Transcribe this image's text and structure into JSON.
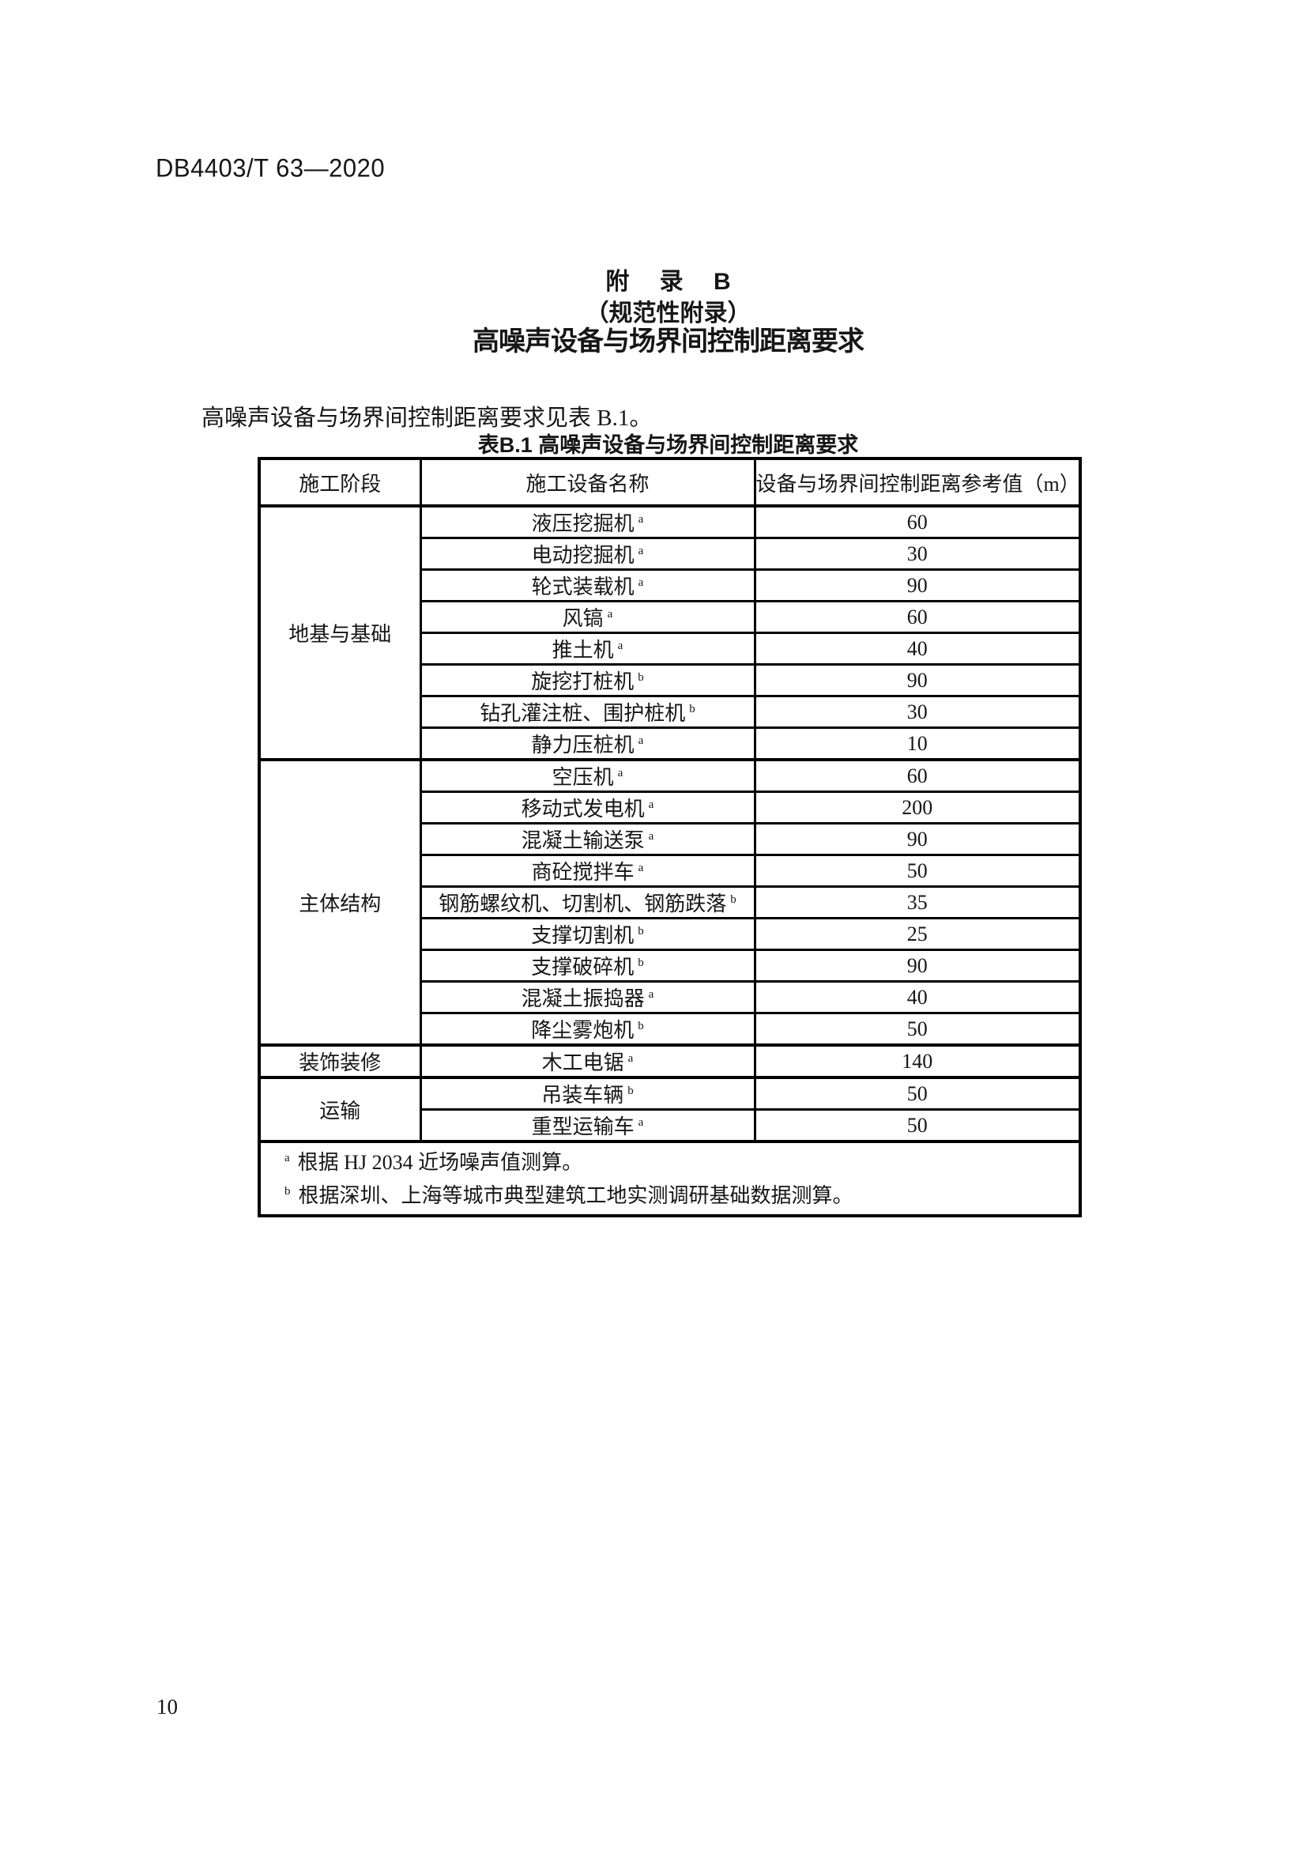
{
  "page": {
    "header_code": "DB4403/T 63—2020",
    "page_number": "10"
  },
  "appendix": {
    "title_line1": "附 录 B",
    "title_line2": "（规范性附录）",
    "title_line3": "高噪声设备与场界间控制距离要求",
    "intro": "高噪声设备与场界间控制距离要求见表 B.1。"
  },
  "table": {
    "caption": "表B.1 高噪声设备与场界间控制距离要求",
    "columns": [
      "施工阶段",
      "施工设备名称",
      "设备与场界间控制距离参考值（m）"
    ],
    "sections": [
      {
        "stage": "地基与基础",
        "rows": [
          {
            "equipment": "液压挖掘机",
            "sup": "a",
            "value": "60"
          },
          {
            "equipment": "电动挖掘机",
            "sup": "a",
            "value": "30"
          },
          {
            "equipment": "轮式装载机",
            "sup": "a",
            "value": "90"
          },
          {
            "equipment": "风镐",
            "sup": "a",
            "value": "60"
          },
          {
            "equipment": "推土机",
            "sup": "a",
            "value": "40"
          },
          {
            "equipment": "旋挖打桩机",
            "sup": "b",
            "value": "90"
          },
          {
            "equipment": "钻孔灌注桩、围护桩机",
            "sup": "b",
            "value": "30"
          },
          {
            "equipment": "静力压桩机",
            "sup": "a",
            "value": "10"
          }
        ]
      },
      {
        "stage": "主体结构",
        "rows": [
          {
            "equipment": "空压机",
            "sup": "a",
            "value": "60"
          },
          {
            "equipment": "移动式发电机",
            "sup": "a",
            "value": "200"
          },
          {
            "equipment": "混凝土输送泵",
            "sup": "a",
            "value": "90"
          },
          {
            "equipment": "商砼搅拌车",
            "sup": "a",
            "value": "50"
          },
          {
            "equipment": "钢筋螺纹机、切割机、钢筋跌落",
            "sup": "b",
            "value": "35"
          },
          {
            "equipment": "支撑切割机",
            "sup": "b",
            "value": "25"
          },
          {
            "equipment": "支撑破碎机",
            "sup": "b",
            "value": "90"
          },
          {
            "equipment": "混凝土振捣器",
            "sup": "a",
            "value": "40"
          },
          {
            "equipment": "降尘雾炮机",
            "sup": "b",
            "value": "50"
          }
        ]
      },
      {
        "stage": "装饰装修",
        "rows": [
          {
            "equipment": "木工电锯",
            "sup": "a",
            "value": "140"
          }
        ]
      },
      {
        "stage": "运输",
        "rows": [
          {
            "equipment": "吊装车辆",
            "sup": "b",
            "value": "50"
          },
          {
            "equipment": "重型运输车",
            "sup": "a",
            "value": "50"
          }
        ]
      }
    ],
    "footnotes": [
      {
        "marker": "a",
        "text": "根据 HJ 2034 近场噪声值测算。"
      },
      {
        "marker": "b",
        "text": "根据深圳、上海等城市典型建筑工地实测调研基础数据测算。"
      }
    ]
  }
}
